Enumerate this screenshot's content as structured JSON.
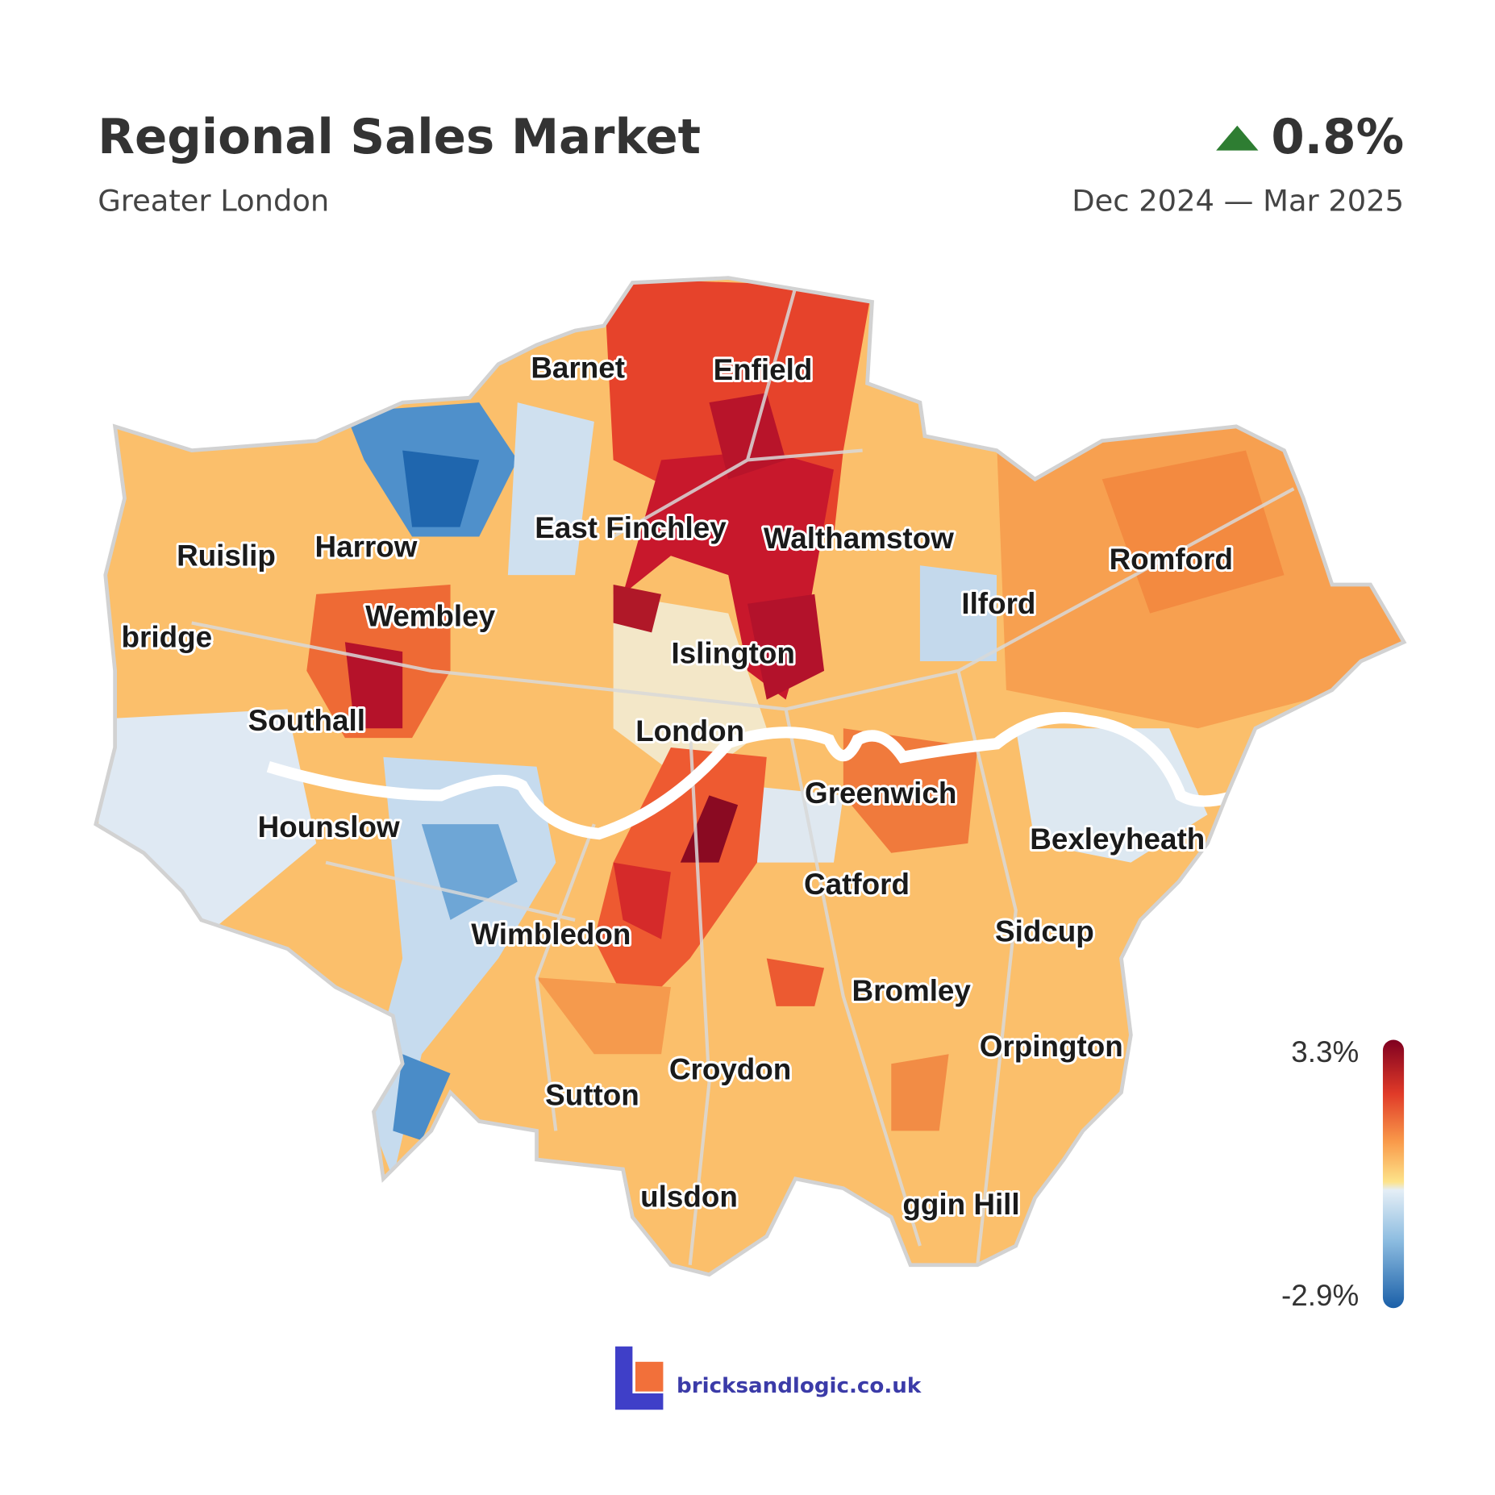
{
  "header": {
    "title": "Regional Sales Market",
    "subtitle": "Greater London",
    "change": "0.8%",
    "period": "Dec 2024 — Mar 2025"
  },
  "map": {
    "labels": [
      "Barnet",
      "Enfield",
      "East Finchley",
      "Walthamstow",
      "Ruislip",
      "Harrow",
      "Romford",
      "Wembley",
      "Ilford",
      "bridge",
      "Islington",
      "Southall",
      "London",
      "Greenwich",
      "Hounslow",
      "Bexleyheath",
      "Catford",
      "Wimbledon",
      "Sidcup",
      "Bromley",
      "Orpington",
      "Croydon",
      "Sutton",
      "ulsdon",
      "ggin Hill"
    ]
  },
  "legend": {
    "max": "3.3%",
    "min": "-2.9%"
  },
  "footer": {
    "brand": "bricksandlogic.co.uk"
  }
}
